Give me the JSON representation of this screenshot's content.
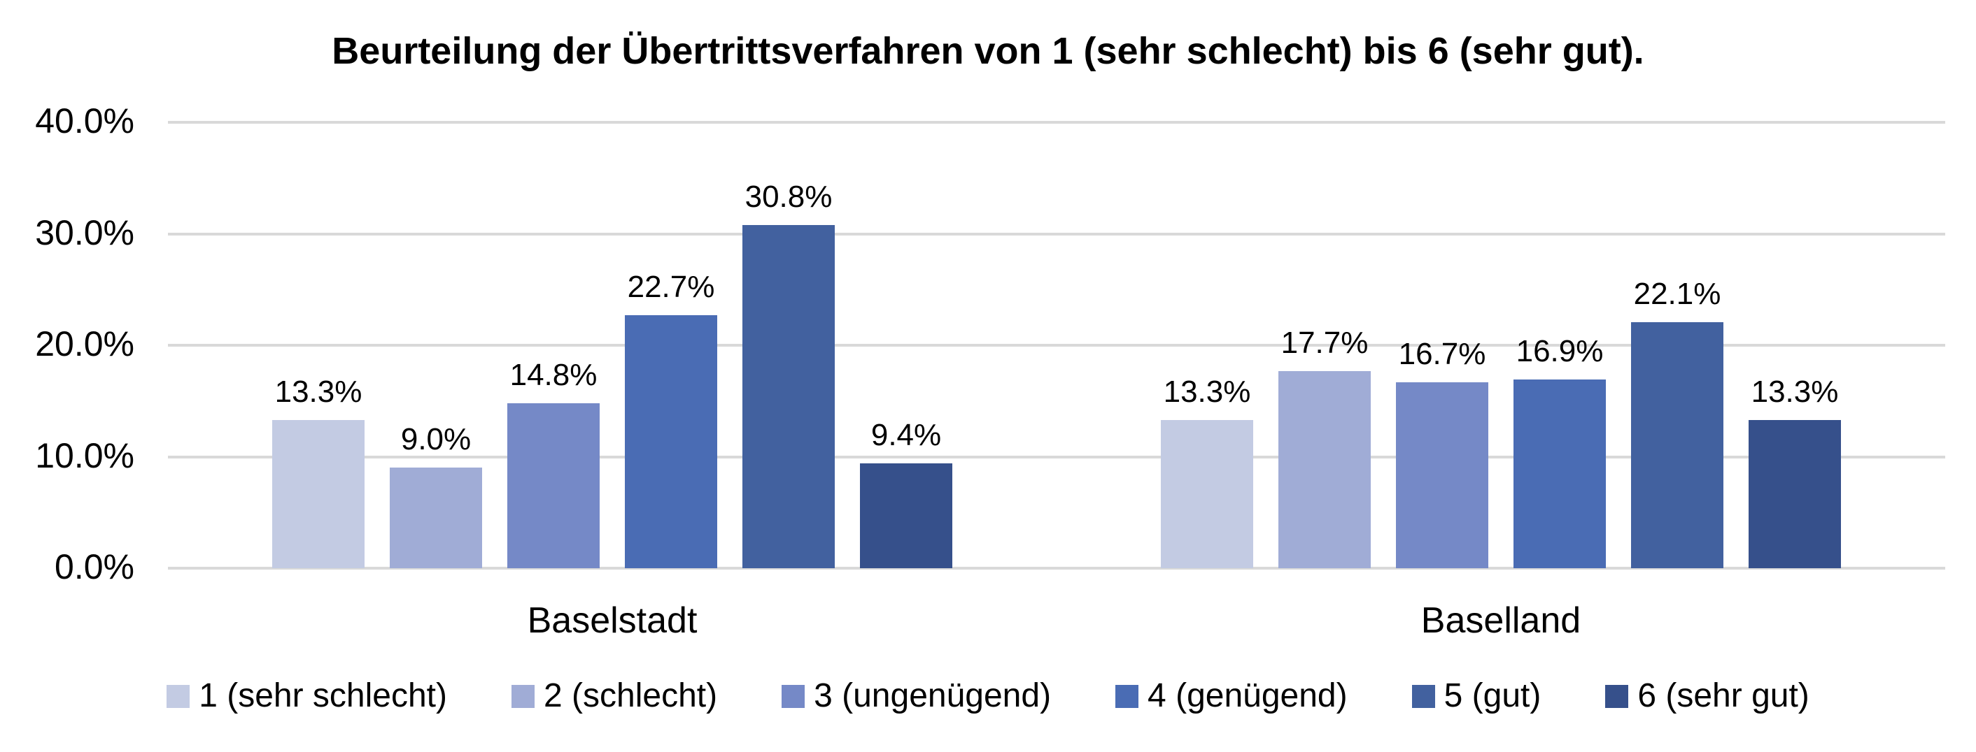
{
  "title": "Beurteilung der Übertrittsverfahren von 1 (sehr schlecht) bis 6 (sehr gut).",
  "chart_data": {
    "type": "bar",
    "title": "Beurteilung der Übertrittsverfahren von 1 (sehr schlecht) bis 6 (sehr gut).",
    "categories": [
      "Baselstadt",
      "Baselland"
    ],
    "series": [
      {
        "name": "1 (sehr schlecht)",
        "color": "#C3CBE3",
        "values": [
          13.3,
          13.3
        ]
      },
      {
        "name": "2 (schlecht)",
        "color": "#A0ACD6",
        "values": [
          9.0,
          17.7
        ]
      },
      {
        "name": "3 (ungenügend)",
        "color": "#7589C7",
        "values": [
          14.8,
          16.7
        ]
      },
      {
        "name": "4 (genügend)",
        "color": "#4A6CB4",
        "values": [
          22.7,
          16.9
        ]
      },
      {
        "name": "5 (gut)",
        "color": "#42619F",
        "values": [
          30.8,
          22.1
        ]
      },
      {
        "name": "6 (sehr gut)",
        "color": "#36508B",
        "values": [
          9.4,
          13.3
        ]
      }
    ],
    "value_labels": [
      [
        "13.3%",
        "9.0%",
        "14.8%",
        "22.7%",
        "30.8%",
        "9.4%"
      ],
      [
        "13.3%",
        "17.7%",
        "16.7%",
        "16.9%",
        "22.1%",
        "13.3%"
      ]
    ],
    "y_ticks": [
      "40.0%",
      "30.0%",
      "20.0%",
      "10.0%",
      "0.0%"
    ],
    "ylim": [
      0,
      40
    ],
    "grid": true,
    "gridline_color": "#D9D9D9",
    "legend_position": "bottom",
    "background_color": "#FFFFFF",
    "text_color": "#000000"
  }
}
